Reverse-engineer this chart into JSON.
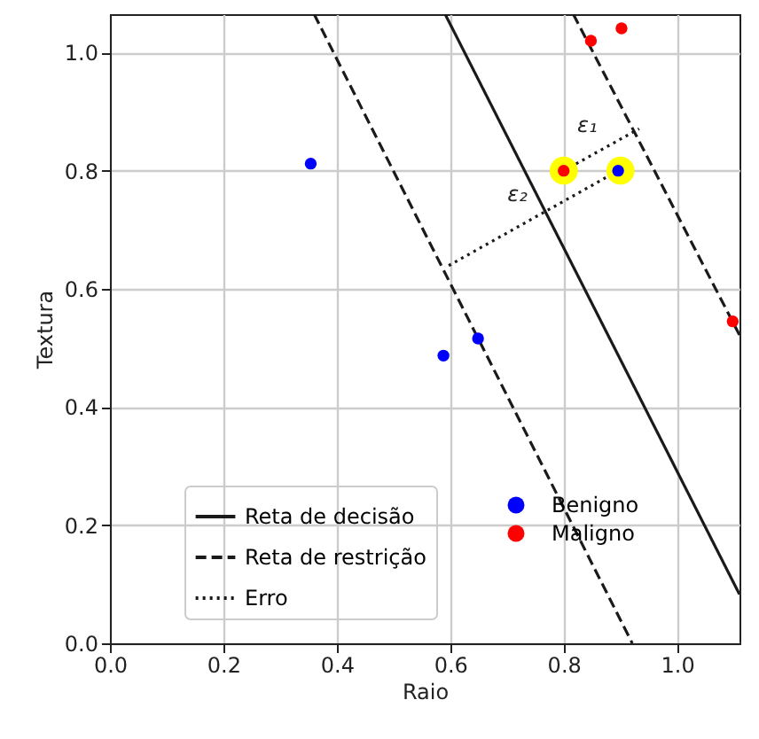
{
  "chart_data": {
    "type": "scatter",
    "xlabel": "Raio",
    "ylabel": "Textura",
    "xlim": [
      0,
      1.11
    ],
    "ylim": [
      0,
      1.065
    ],
    "xticks": [
      {
        "value": 0,
        "label": "0.0"
      },
      0.2,
      0.4,
      0.6,
      0.8,
      {
        "value": 1,
        "label": "1.0"
      }
    ],
    "yticks": [
      {
        "value": 0,
        "label": "0.0"
      },
      0.2,
      0.4,
      0.6,
      0.8,
      {
        "value": 1,
        "label": "1.0"
      }
    ],
    "grid": true,
    "legend": "bottom",
    "annotations": [
      "ε₁",
      "ε₂"
    ],
    "series": [
      {
        "type": "line",
        "name": "Reta de decisão",
        "color": "#1a1a1a",
        "line_style": "solid",
        "x": [
          0.591,
          1.11
        ],
        "values": [
          1.065,
          0.083
        ]
      },
      {
        "type": "line",
        "name": "Reta de restrição",
        "color": "#1a1a1a",
        "line_style": "dashed",
        "x": [
          0.36,
          0.921
        ],
        "values": [
          1.065,
          0
        ]
      },
      {
        "type": "line",
        "color": "#1a1a1a",
        "line_style": "dashed",
        "x": [
          0.817,
          1.11
        ],
        "values": [
          1.065,
          0.522
        ]
      },
      {
        "type": "line",
        "name": "Erro",
        "color": "#1a1a1a",
        "line_style": "dotted",
        "x": [
          0.8,
          0.933
        ],
        "values": [
          0.8,
          0.871
        ]
      },
      {
        "type": "line",
        "color": "#1a1a1a",
        "line_style": "dotted",
        "x": [
          0.896,
          0.591
        ],
        "values": [
          0.8,
          0.636
        ]
      },
      {
        "color": "#ffff00",
        "marker": "circle",
        "sizes": [
          1,
          1
        ],
        "x": [
          0.8,
          0.9
        ],
        "values": [
          0.8,
          0.8
        ]
      },
      {
        "name": "Benigno",
        "color": "#0000ff",
        "marker": "circle",
        "x": [
          0.354,
          0.588,
          0.649,
          0.896
        ],
        "values": [
          0.812,
          0.487,
          0.516,
          0.8
        ]
      },
      {
        "name": "Maligno",
        "color": "#ff0000",
        "marker": "circle",
        "x": [
          0.8,
          0.848,
          0.902,
          1.098
        ],
        "values": [
          0.8,
          1.02,
          1.041,
          0.545
        ]
      }
    ]
  }
}
